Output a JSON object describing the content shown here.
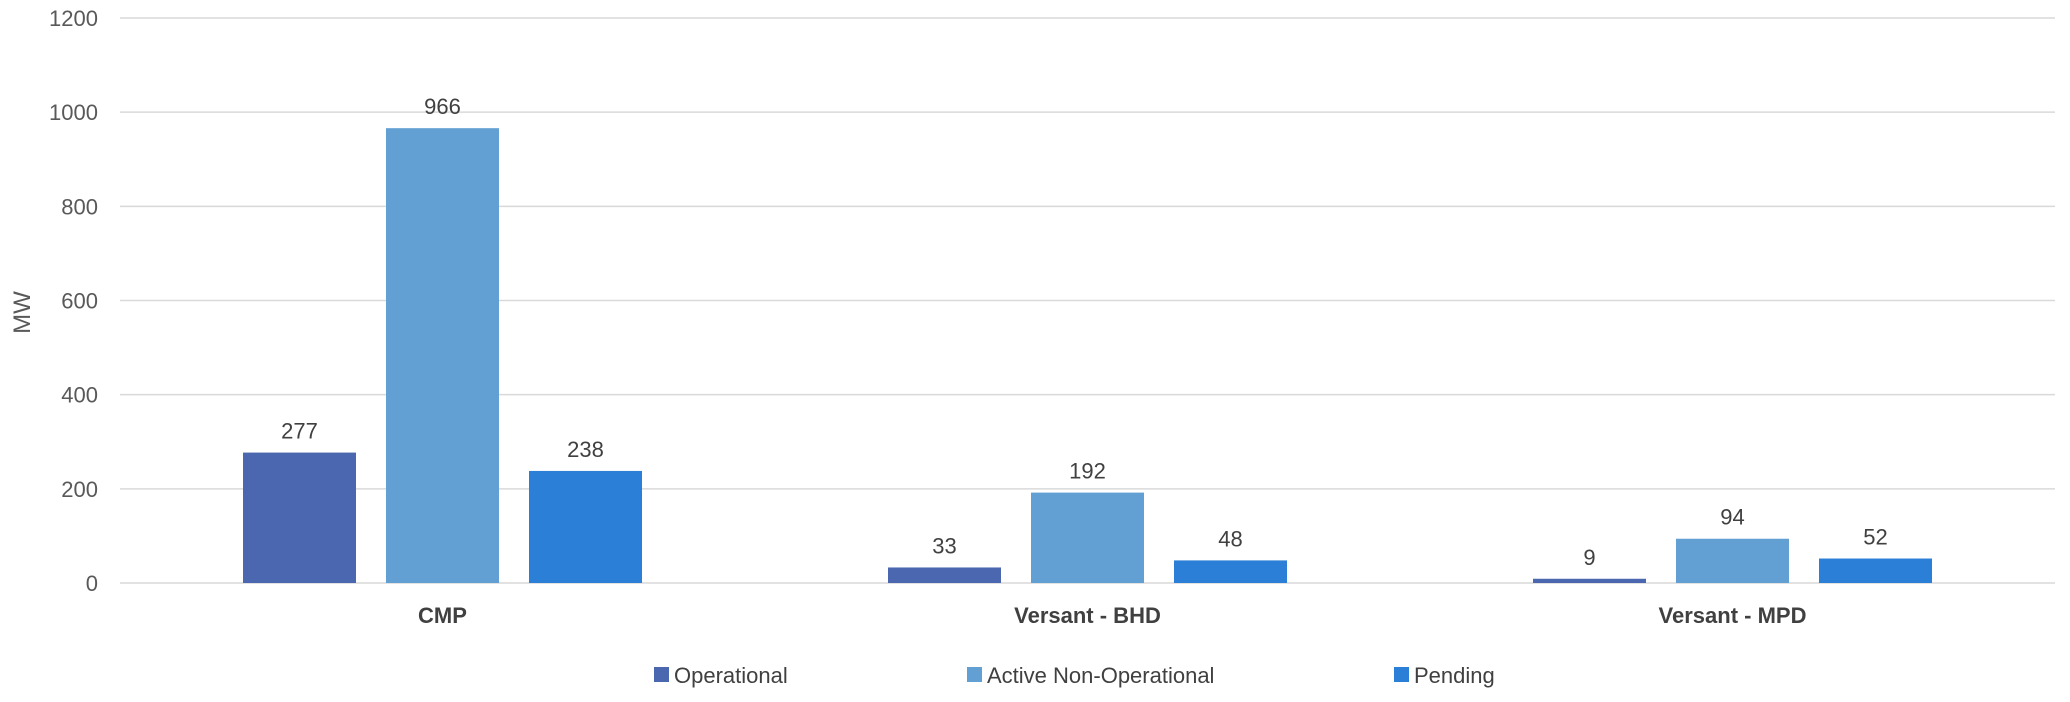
{
  "chart_data": {
    "type": "bar",
    "categories": [
      "CMP",
      "Versant - BHD",
      "Versant - MPD"
    ],
    "series": [
      {
        "name": "Operational",
        "values": [
          277,
          33,
          9
        ],
        "color": "#4a67b0"
      },
      {
        "name": "Active Non-Operational",
        "values": [
          966,
          192,
          94
        ],
        "color": "#629fd2"
      },
      {
        "name": "Pending",
        "values": [
          238,
          48,
          52
        ],
        "color": "#2b7fd6"
      }
    ],
    "ylabel": "MW",
    "ylim": [
      0,
      1200
    ],
    "yticks": [
      0,
      200,
      400,
      600,
      800,
      1000,
      1200
    ],
    "grid": true,
    "legend": "bottom"
  }
}
